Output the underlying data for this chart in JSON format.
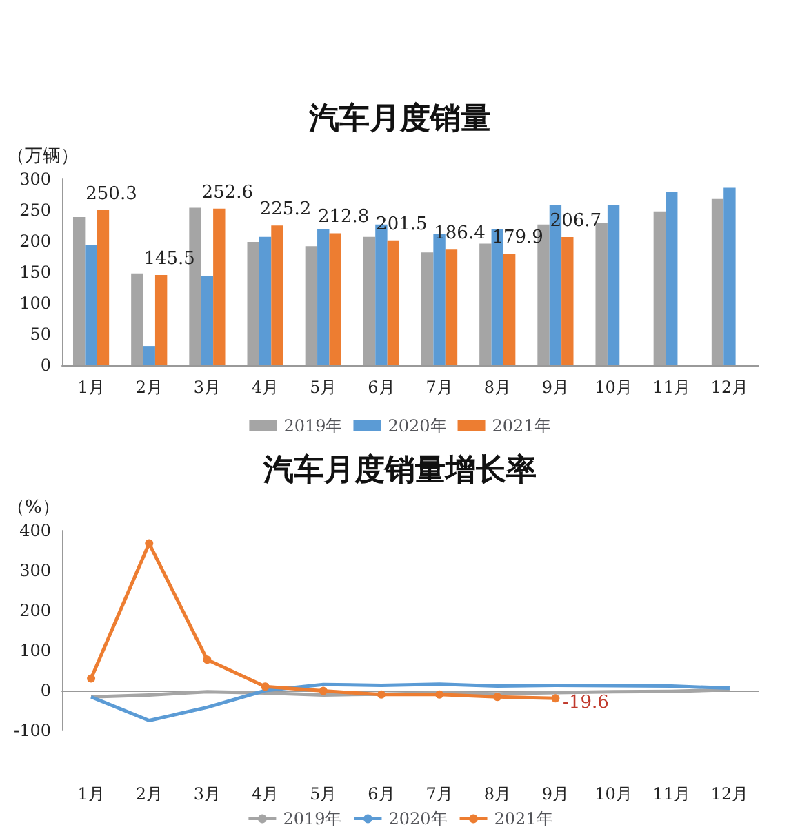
{
  "chart_data": [
    {
      "type": "bar",
      "title": "汽车月度销量",
      "ylabel": "（万辆）",
      "categories": [
        "1月",
        "2月",
        "3月",
        "4月",
        "5月",
        "6月",
        "7月",
        "8月",
        "9月",
        "10月",
        "11月",
        "12月"
      ],
      "series": [
        {
          "name": "2019年",
          "color": "#a5a5a5",
          "values": [
            239,
            148,
            254,
            199,
            192,
            207,
            182,
            196,
            227,
            229,
            248,
            268
          ]
        },
        {
          "name": "2020年",
          "color": "#5b9bd5",
          "values": [
            194,
            31,
            144,
            207,
            220,
            227,
            212,
            220,
            258,
            259,
            279,
            286
          ]
        },
        {
          "name": "2021年",
          "color": "#ed7d31",
          "values": [
            250.3,
            145.5,
            252.6,
            225.2,
            212.8,
            201.5,
            186.4,
            179.9,
            206.7,
            null,
            null,
            null
          ],
          "value_labels": [
            "250.3",
            "145.5",
            "252.6",
            "225.2",
            "212.8",
            "201.5",
            "186.4",
            "179.9",
            "206.7",
            null,
            null,
            null
          ]
        }
      ],
      "ylim": [
        0,
        300
      ],
      "yticks": [
        0,
        50,
        100,
        150,
        200,
        250,
        300
      ],
      "legend": "bottom"
    },
    {
      "type": "line",
      "title": "汽车月度销量增长率",
      "ylabel": "（%）",
      "categories": [
        "1月",
        "2月",
        "3月",
        "4月",
        "5月",
        "6月",
        "7月",
        "8月",
        "9月",
        "10月",
        "11月",
        "12月"
      ],
      "series": [
        {
          "name": "2019年",
          "color": "#a5a5a5",
          "marker": "none",
          "values": [
            -16,
            -11,
            -3,
            -6,
            -11,
            -9,
            -6,
            -8,
            -5,
            -3,
            -2,
            2
          ]
        },
        {
          "name": "2020年",
          "color": "#5b9bd5",
          "marker": "none",
          "values": [
            -16,
            -75,
            -42,
            0,
            15,
            13,
            16,
            11,
            13,
            12,
            11,
            6
          ]
        },
        {
          "name": "2021年",
          "color": "#ed7d31",
          "marker": "circle",
          "values": [
            30,
            368,
            77,
            10,
            -1,
            -10,
            -10,
            -16,
            -19.6,
            null,
            null,
            null
          ],
          "value_labels": [
            null,
            null,
            null,
            null,
            null,
            null,
            null,
            null,
            "-19.6",
            null,
            null,
            null
          ]
        }
      ],
      "ylim": [
        -100,
        400
      ],
      "yticks": [
        -100,
        0,
        100,
        200,
        300,
        400
      ],
      "legend": "bottom"
    }
  ]
}
